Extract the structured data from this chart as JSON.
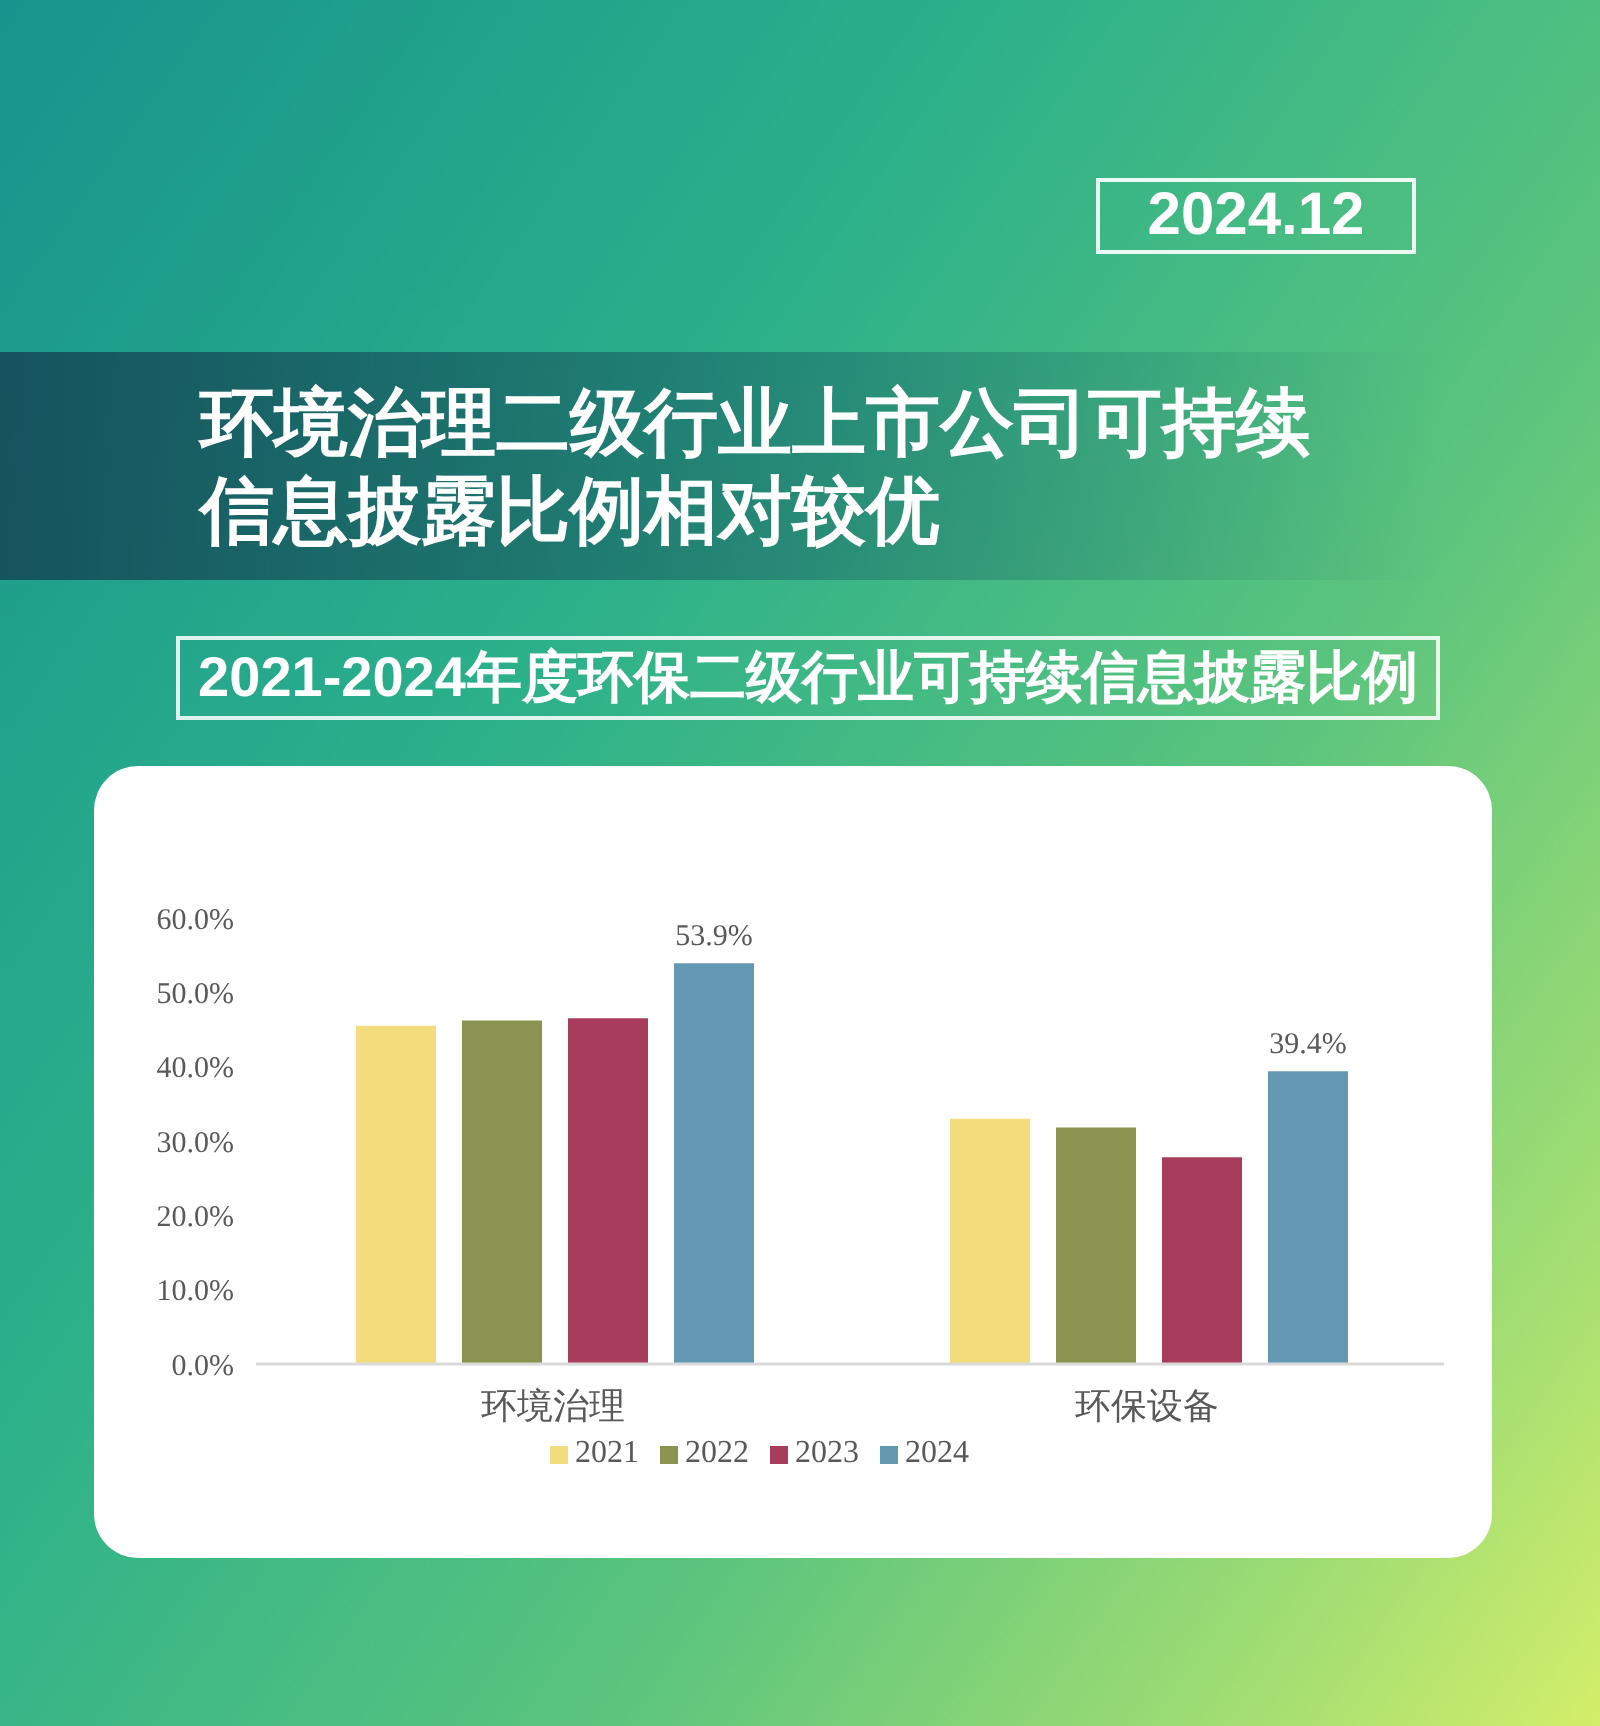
{
  "chart_data": {
    "type": "bar",
    "title": "环境治理二级行业上市公司可持续信息披露比例相对较优",
    "subtitle": "2021-2024年度环保二级行业可持续信息披露比例",
    "annotations": [
      "2024.12"
    ],
    "categories": [
      "环境治理",
      "环保设备"
    ],
    "series": [
      {
        "name": "2021",
        "color": "#f2dc7c",
        "values": [
          45.5,
          33.0
        ]
      },
      {
        "name": "2022",
        "color": "#8a9450",
        "values": [
          46.2,
          31.8
        ]
      },
      {
        "name": "2023",
        "color": "#a83c5c",
        "values": [
          46.5,
          27.8
        ]
      },
      {
        "name": "2024",
        "color": "#6499b3",
        "values": [
          53.9,
          39.4
        ],
        "value_labels": [
          "53.9%",
          "39.4%"
        ]
      }
    ],
    "ylim": [
      0,
      60
    ],
    "yticks": [
      {
        "value": 0,
        "label": "0.0%"
      },
      {
        "value": 10,
        "label": "10.0%"
      },
      {
        "value": 20,
        "label": "20.0%"
      },
      {
        "value": 30,
        "label": "30.0%"
      },
      {
        "value": 40,
        "label": "40.0%"
      },
      {
        "value": 50,
        "label": "50.0%"
      },
      {
        "value": 60,
        "label": "60.0%"
      }
    ],
    "grid": false,
    "legend": "bottom"
  }
}
